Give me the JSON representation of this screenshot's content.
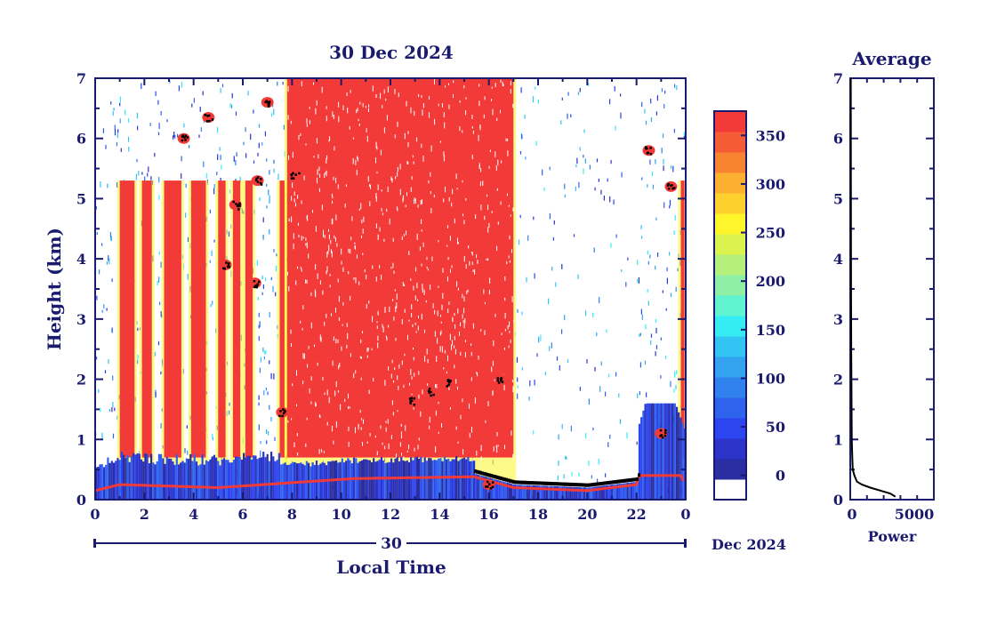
{
  "chart_data": [
    {
      "type": "heatmap",
      "title": "30 Dec 2024",
      "ylabel": "Height (km)",
      "xlabel": "Local Time",
      "ylim": [
        0,
        7
      ],
      "xlim": [
        0,
        24
      ],
      "x_ticks": [
        "0",
        "2",
        "4",
        "6",
        "8",
        "10",
        "12",
        "14",
        "16",
        "18",
        "20",
        "22",
        "0"
      ],
      "y_ticks": [
        "0",
        "1",
        "2",
        "3",
        "4",
        "5",
        "6",
        "7"
      ],
      "date_axis": {
        "day": "30",
        "month_year": "Dec 2024"
      },
      "colorbar": {
        "ticks": [
          "0",
          "50",
          "100",
          "150",
          "200",
          "250",
          "300",
          "350"
        ],
        "range": [
          -25,
          375
        ],
        "colors": [
          "#ffffff",
          "#2a2ea0",
          "#2b33c8",
          "#2c45f0",
          "#2f63ee",
          "#3081ee",
          "#33a2ef",
          "#32c4f2",
          "#35ecf3",
          "#5ff3cf",
          "#8ff0a5",
          "#b6f07c",
          "#dcf24e",
          "#fef52a",
          "#fdd02e",
          "#fbb030",
          "#f88432",
          "#f55b34",
          "#f23a38"
        ]
      },
      "clear_red_intervals_hours": [
        [
          1.0,
          1.6
        ],
        [
          1.9,
          2.3
        ],
        [
          2.8,
          3.5
        ],
        [
          3.9,
          4.5
        ],
        [
          5.0,
          5.3
        ],
        [
          5.6,
          5.9
        ],
        [
          6.1,
          6.4
        ],
        [
          7.5,
          7.7
        ],
        [
          7.8,
          17.0
        ],
        [
          23.8,
          23.95
        ]
      ],
      "boundary_layer_top_km": [
        [
          0.0,
          0.15
        ],
        [
          1.0,
          0.25
        ],
        [
          5.0,
          0.2
        ],
        [
          10.5,
          0.35
        ],
        [
          15.4,
          0.38
        ],
        [
          17.0,
          0.2
        ],
        [
          20.0,
          0.15
        ],
        [
          22.0,
          0.25
        ],
        [
          22.4,
          0.8
        ],
        [
          23.0,
          1.3
        ],
        [
          24.0,
          0.2
        ]
      ]
    },
    {
      "type": "line",
      "title": "Average",
      "xlabel": "Power",
      "ylabel": "",
      "xlim": [
        0,
        5000
      ],
      "ylim": [
        0,
        7
      ],
      "x_ticks": [
        "0",
        "5000"
      ],
      "y_ticks": [
        "0",
        "1",
        "2",
        "3",
        "4",
        "5",
        "6",
        "7"
      ],
      "x": [
        2700,
        2400,
        1800,
        1200,
        700,
        400,
        250,
        150,
        120,
        90,
        80,
        70,
        60,
        50,
        40,
        35,
        30
      ],
      "y": [
        0.05,
        0.1,
        0.15,
        0.2,
        0.25,
        0.3,
        0.4,
        0.5,
        0.7,
        1.0,
        1.5,
        2.0,
        2.5,
        3.5,
        4.5,
        5.5,
        7.0
      ]
    }
  ]
}
